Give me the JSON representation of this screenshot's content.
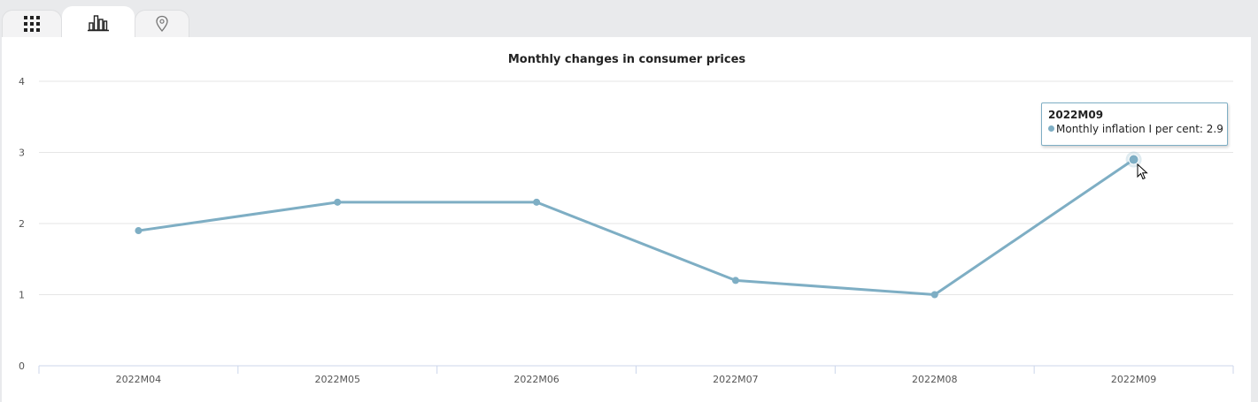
{
  "tabs": [
    {
      "icon": "grid-icon",
      "active": false
    },
    {
      "icon": "bar-chart-icon",
      "active": true
    },
    {
      "icon": "map-pin-icon",
      "active": false
    }
  ],
  "colors": {
    "series": "#7eaec4",
    "grid": "#e6e6e6",
    "axis": "#ccd6eb"
  },
  "chart_data": {
    "type": "line",
    "title": "Monthly changes in consumer prices",
    "xlabel": "",
    "ylabel": "",
    "categories": [
      "2022M04",
      "2022M05",
      "2022M06",
      "2022M07",
      "2022M08",
      "2022M09"
    ],
    "series": [
      {
        "name": "Monthly inflation I per cent",
        "values": [
          1.9,
          2.3,
          2.3,
          1.2,
          1.0,
          2.9
        ]
      }
    ],
    "ylim": [
      0,
      4
    ],
    "yticks": [
      0,
      1,
      2,
      3,
      4
    ],
    "grid": true,
    "legend": "none"
  },
  "tooltip": {
    "title": "2022M09",
    "label": "Monthly inflation I per cent: 2.9"
  }
}
